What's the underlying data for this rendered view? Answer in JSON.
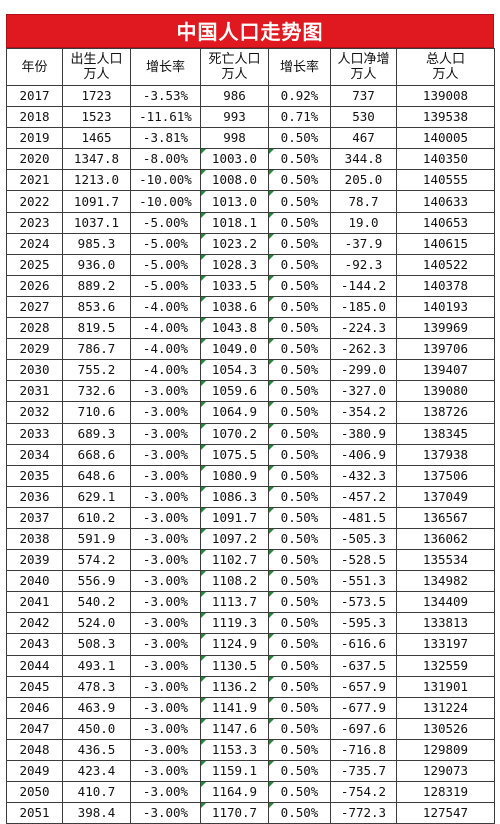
{
  "title": "中国人口走势图",
  "headers": [
    {
      "line1": "年份",
      "line2": ""
    },
    {
      "line1": "出生人口",
      "line2": "万人"
    },
    {
      "line1": "增长率",
      "line2": ""
    },
    {
      "line1": "死亡人口",
      "line2": "万人"
    },
    {
      "line1": "增长率",
      "line2": ""
    },
    {
      "line1": "人口净增",
      "line2": "万人"
    },
    {
      "line1": "总人口",
      "line2": "万人"
    }
  ],
  "rows": [
    [
      "2017",
      "1723",
      "-3.53%",
      "986",
      "0.92%",
      "737",
      "139008"
    ],
    [
      "2018",
      "1523",
      "-11.61%",
      "993",
      "0.71%",
      "530",
      "139538"
    ],
    [
      "2019",
      "1465",
      "-3.81%",
      "998",
      "0.50%",
      "467",
      "140005"
    ],
    [
      "2020",
      "1347.8",
      "-8.00%",
      "1003.0",
      "0.50%",
      "344.8",
      "140350"
    ],
    [
      "2021",
      "1213.0",
      "-10.00%",
      "1008.0",
      "0.50%",
      "205.0",
      "140555"
    ],
    [
      "2022",
      "1091.7",
      "-10.00%",
      "1013.0",
      "0.50%",
      "78.7",
      "140633"
    ],
    [
      "2023",
      "1037.1",
      "-5.00%",
      "1018.1",
      "0.50%",
      "19.0",
      "140653"
    ],
    [
      "2024",
      "985.3",
      "-5.00%",
      "1023.2",
      "0.50%",
      "-37.9",
      "140615"
    ],
    [
      "2025",
      "936.0",
      "-5.00%",
      "1028.3",
      "0.50%",
      "-92.3",
      "140522"
    ],
    [
      "2026",
      "889.2",
      "-5.00%",
      "1033.5",
      "0.50%",
      "-144.2",
      "140378"
    ],
    [
      "2027",
      "853.6",
      "-4.00%",
      "1038.6",
      "0.50%",
      "-185.0",
      "140193"
    ],
    [
      "2028",
      "819.5",
      "-4.00%",
      "1043.8",
      "0.50%",
      "-224.3",
      "139969"
    ],
    [
      "2029",
      "786.7",
      "-4.00%",
      "1049.0",
      "0.50%",
      "-262.3",
      "139706"
    ],
    [
      "2030",
      "755.2",
      "-4.00%",
      "1054.3",
      "0.50%",
      "-299.0",
      "139407"
    ],
    [
      "2031",
      "732.6",
      "-3.00%",
      "1059.6",
      "0.50%",
      "-327.0",
      "139080"
    ],
    [
      "2032",
      "710.6",
      "-3.00%",
      "1064.9",
      "0.50%",
      "-354.2",
      "138726"
    ],
    [
      "2033",
      "689.3",
      "-3.00%",
      "1070.2",
      "0.50%",
      "-380.9",
      "138345"
    ],
    [
      "2034",
      "668.6",
      "-3.00%",
      "1075.5",
      "0.50%",
      "-406.9",
      "137938"
    ],
    [
      "2035",
      "648.6",
      "-3.00%",
      "1080.9",
      "0.50%",
      "-432.3",
      "137506"
    ],
    [
      "2036",
      "629.1",
      "-3.00%",
      "1086.3",
      "0.50%",
      "-457.2",
      "137049"
    ],
    [
      "2037",
      "610.2",
      "-3.00%",
      "1091.7",
      "0.50%",
      "-481.5",
      "136567"
    ],
    [
      "2038",
      "591.9",
      "-3.00%",
      "1097.2",
      "0.50%",
      "-505.3",
      "136062"
    ],
    [
      "2039",
      "574.2",
      "-3.00%",
      "1102.7",
      "0.50%",
      "-528.5",
      "135534"
    ],
    [
      "2040",
      "556.9",
      "-3.00%",
      "1108.2",
      "0.50%",
      "-551.3",
      "134982"
    ],
    [
      "2041",
      "540.2",
      "-3.00%",
      "1113.7",
      "0.50%",
      "-573.5",
      "134409"
    ],
    [
      "2042",
      "524.0",
      "-3.00%",
      "1119.3",
      "0.50%",
      "-595.3",
      "133813"
    ],
    [
      "2043",
      "508.3",
      "-3.00%",
      "1124.9",
      "0.50%",
      "-616.6",
      "133197"
    ],
    [
      "2044",
      "493.1",
      "-3.00%",
      "1130.5",
      "0.50%",
      "-637.5",
      "132559"
    ],
    [
      "2045",
      "478.3",
      "-3.00%",
      "1136.2",
      "0.50%",
      "-657.9",
      "131901"
    ],
    [
      "2046",
      "463.9",
      "-3.00%",
      "1141.9",
      "0.50%",
      "-677.9",
      "131224"
    ],
    [
      "2047",
      "450.0",
      "-3.00%",
      "1147.6",
      "0.50%",
      "-697.6",
      "130526"
    ],
    [
      "2048",
      "436.5",
      "-3.00%",
      "1153.3",
      "0.50%",
      "-716.8",
      "129809"
    ],
    [
      "2049",
      "423.4",
      "-3.00%",
      "1159.1",
      "0.50%",
      "-735.7",
      "129073"
    ],
    [
      "2050",
      "410.7",
      "-3.00%",
      "1164.9",
      "0.50%",
      "-754.2",
      "128319"
    ],
    [
      "2051",
      "398.4",
      "-3.00%",
      "1170.7",
      "0.50%",
      "-772.3",
      "127547"
    ]
  ]
}
